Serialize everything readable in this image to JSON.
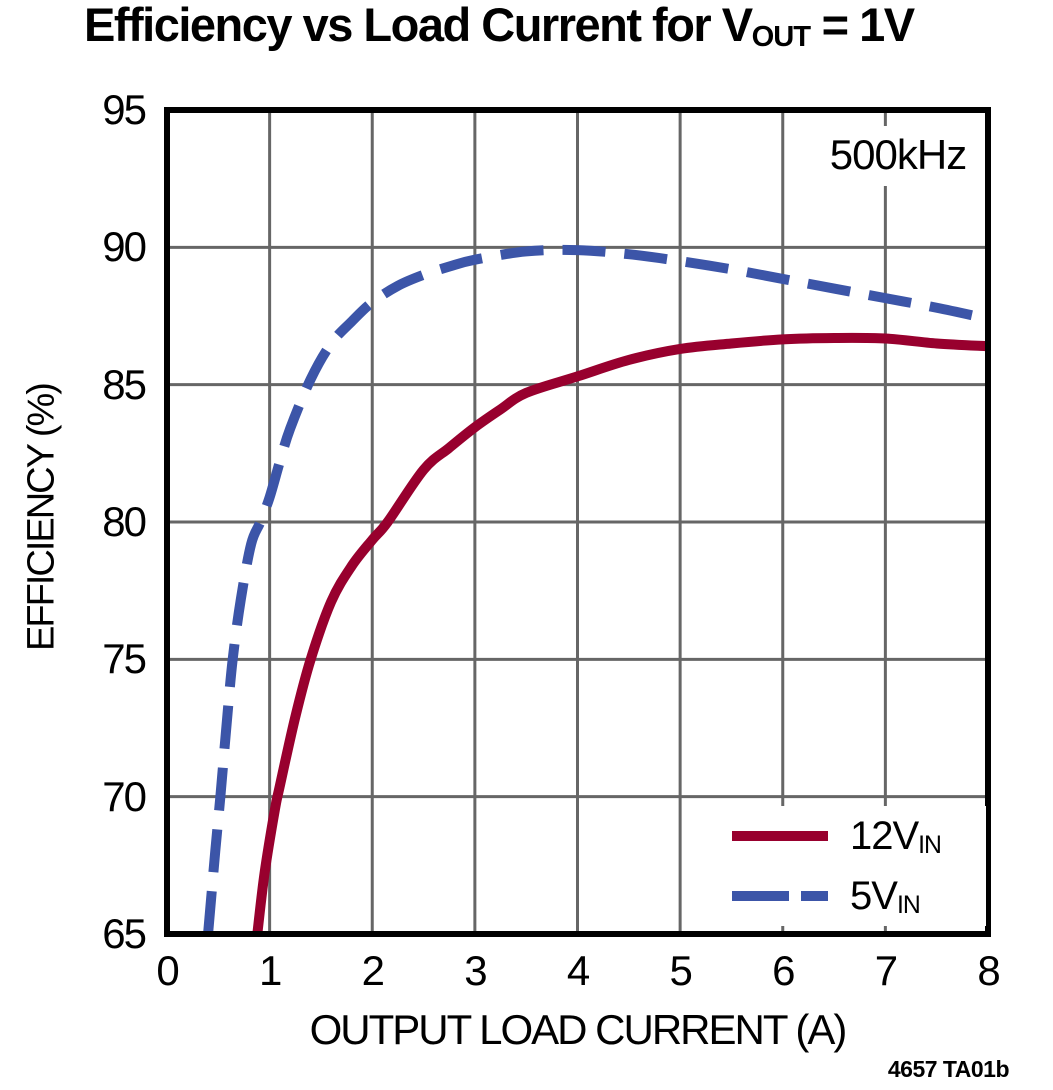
{
  "chart_data": {
    "type": "line",
    "title": "Efficiency vs Load Current for VOUT = 1V",
    "title_parts": {
      "prefix": "Efficiency vs Load Current for V",
      "sub": "OUT",
      "suffix": " = 1V"
    },
    "xlabel": "OUTPUT LOAD CURRENT (A)",
    "ylabel": "EFFICIENCY (%)",
    "xlim": [
      0,
      8
    ],
    "ylim": [
      65,
      95
    ],
    "xticks": [
      0,
      1,
      2,
      3,
      4,
      5,
      6,
      7,
      8
    ],
    "yticks": [
      65,
      70,
      75,
      80,
      85,
      90,
      95
    ],
    "grid": true,
    "annotation": "500kHz",
    "footnote": "4657 TA01b",
    "legend_position": "bottom-right",
    "colors": {
      "frame": "#000000",
      "grid": "#666666",
      "red": "#98002E",
      "blue": "#3C55A8",
      "background": "#ffffff"
    },
    "series": [
      {
        "name": "12VIN",
        "legend_main": "12V",
        "legend_sub": "IN",
        "color_key": "red",
        "line_style": "solid",
        "points": [
          [
            0.88,
            65.0
          ],
          [
            0.95,
            67.2
          ],
          [
            1.05,
            69.5
          ],
          [
            1.1,
            70.4
          ],
          [
            1.25,
            72.9
          ],
          [
            1.4,
            75.0
          ],
          [
            1.6,
            77.1
          ],
          [
            1.8,
            78.4
          ],
          [
            2.0,
            79.35
          ],
          [
            2.15,
            80.0
          ],
          [
            2.5,
            81.9
          ],
          [
            2.75,
            82.7
          ],
          [
            3.0,
            83.45
          ],
          [
            3.25,
            84.1
          ],
          [
            3.5,
            84.7
          ],
          [
            4.0,
            85.3
          ],
          [
            4.5,
            85.9
          ],
          [
            5.0,
            86.3
          ],
          [
            5.5,
            86.5
          ],
          [
            6.0,
            86.65
          ],
          [
            6.5,
            86.7
          ],
          [
            7.0,
            86.68
          ],
          [
            7.5,
            86.5
          ],
          [
            8.0,
            86.4
          ]
        ]
      },
      {
        "name": "5VIN",
        "legend_main": "5V",
        "legend_sub": "IN",
        "color_key": "blue",
        "line_style": "dashed",
        "points": [
          [
            0.4,
            65.0
          ],
          [
            0.47,
            68.0
          ],
          [
            0.52,
            70.0
          ],
          [
            0.58,
            72.6
          ],
          [
            0.64,
            75.0
          ],
          [
            0.72,
            77.2
          ],
          [
            0.82,
            79.2
          ],
          [
            0.91,
            80.0
          ],
          [
            1.0,
            80.9
          ],
          [
            1.1,
            82.2
          ],
          [
            1.2,
            83.4
          ],
          [
            1.4,
            85.2
          ],
          [
            1.6,
            86.5
          ],
          [
            1.8,
            87.3
          ],
          [
            2.0,
            88.0
          ],
          [
            2.25,
            88.6
          ],
          [
            2.5,
            89.0
          ],
          [
            2.75,
            89.3
          ],
          [
            3.0,
            89.55
          ],
          [
            3.5,
            89.85
          ],
          [
            4.0,
            89.9
          ],
          [
            4.5,
            89.75
          ],
          [
            5.0,
            89.5
          ],
          [
            5.5,
            89.2
          ],
          [
            6.0,
            88.85
          ],
          [
            6.5,
            88.5
          ],
          [
            7.0,
            88.15
          ],
          [
            7.5,
            87.8
          ],
          [
            8.0,
            87.4
          ]
        ]
      }
    ]
  }
}
